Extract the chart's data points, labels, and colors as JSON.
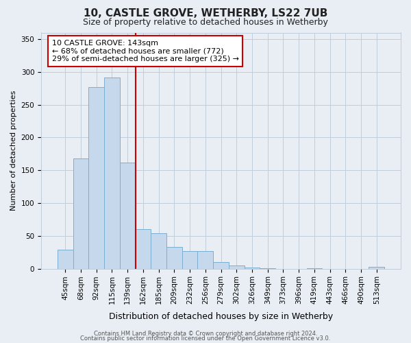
{
  "title": "10, CASTLE GROVE, WETHERBY, LS22 7UB",
  "subtitle": "Size of property relative to detached houses in Wetherby",
  "xlabel": "Distribution of detached houses by size in Wetherby",
  "ylabel": "Number of detached properties",
  "bar_labels": [
    "45sqm",
    "68sqm",
    "92sqm",
    "115sqm",
    "139sqm",
    "162sqm",
    "185sqm",
    "209sqm",
    "232sqm",
    "256sqm",
    "279sqm",
    "302sqm",
    "326sqm",
    "349sqm",
    "373sqm",
    "396sqm",
    "419sqm",
    "443sqm",
    "466sqm",
    "490sqm",
    "513sqm"
  ],
  "bar_values": [
    29,
    168,
    277,
    291,
    162,
    60,
    54,
    33,
    27,
    27,
    10,
    5,
    2,
    1,
    0,
    0,
    1,
    0,
    0,
    0,
    3
  ],
  "highlight_line_after_index": 4,
  "bar_color": "#c5d8ec",
  "bar_edge_color": "#7aaed0",
  "highlight_line_color": "#cc0000",
  "annotation_text": "10 CASTLE GROVE: 143sqm\n← 68% of detached houses are smaller (772)\n29% of semi-detached houses are larger (325) →",
  "annotation_box_facecolor": "#ffffff",
  "annotation_box_edgecolor": "#cc0000",
  "ylim": [
    0,
    360
  ],
  "yticks": [
    0,
    50,
    100,
    150,
    200,
    250,
    300,
    350
  ],
  "footer_line1": "Contains HM Land Registry data © Crown copyright and database right 2024.",
  "footer_line2": "Contains public sector information licensed under the Open Government Licence v3.0.",
  "background_color": "#e8eef4",
  "plot_background_color": "#e8eef4",
  "grid_color": "#c0ccd8",
  "title_fontsize": 11,
  "subtitle_fontsize": 9,
  "xlabel_fontsize": 9,
  "ylabel_fontsize": 8,
  "tick_fontsize": 7.5,
  "footer_fontsize": 6
}
